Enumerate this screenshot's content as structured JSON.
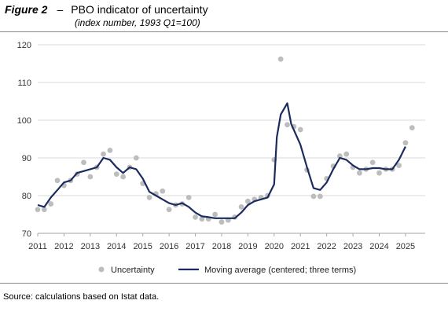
{
  "figure": {
    "label": "Figure 2",
    "dash": "–",
    "title": "PBO indicator of uncertainty",
    "subtitle": "(index number, 1993 Q1=100)"
  },
  "source": "Source: calculations based on Istat data.",
  "colors": {
    "scatter": "#bdbdbd",
    "line": "#1c2b5e",
    "grid": "#d9d9d9",
    "axis": "#a6a6a6"
  },
  "chart_data": {
    "type": "line",
    "title": "PBO indicator of uncertainty",
    "xlabel": "",
    "ylabel": "",
    "xlim": [
      2011.0,
      2025.75
    ],
    "ylim": [
      70,
      120
    ],
    "yticks": [
      70,
      80,
      90,
      100,
      110,
      120
    ],
    "xticks": [
      2011,
      2012,
      2013,
      2014,
      2015,
      2016,
      2017,
      2018,
      2019,
      2020,
      2021,
      2022,
      2023,
      2024,
      2025
    ],
    "grid": "horizontal",
    "legend_position": "bottom",
    "series": [
      {
        "name": "Uncertainty",
        "type": "scatter",
        "points": [
          [
            2011.0,
            76.3
          ],
          [
            2011.25,
            76.3
          ],
          [
            2011.5,
            77.8
          ],
          [
            2011.75,
            84.0
          ],
          [
            2012.0,
            82.7
          ],
          [
            2012.25,
            84.0
          ],
          [
            2012.5,
            85.7
          ],
          [
            2012.75,
            88.8
          ],
          [
            2013.0,
            85.0
          ],
          [
            2013.25,
            87.5
          ],
          [
            2013.5,
            91.0
          ],
          [
            2013.75,
            92.0
          ],
          [
            2014.0,
            85.7
          ],
          [
            2014.25,
            85.0
          ],
          [
            2014.5,
            87.5
          ],
          [
            2014.75,
            90.0
          ],
          [
            2015.0,
            83.2
          ],
          [
            2015.25,
            79.5
          ],
          [
            2015.5,
            80.5
          ],
          [
            2015.75,
            81.2
          ],
          [
            2016.0,
            76.3
          ],
          [
            2016.25,
            77.5
          ],
          [
            2016.5,
            77.8
          ],
          [
            2016.75,
            79.5
          ],
          [
            2017.0,
            74.3
          ],
          [
            2017.25,
            73.8
          ],
          [
            2017.5,
            73.8
          ],
          [
            2017.75,
            75.0
          ],
          [
            2018.0,
            73.0
          ],
          [
            2018.25,
            73.5
          ],
          [
            2018.5,
            74.3
          ],
          [
            2018.75,
            77.0
          ],
          [
            2019.0,
            78.5
          ],
          [
            2019.25,
            79.0
          ],
          [
            2019.5,
            79.5
          ],
          [
            2019.75,
            80.0
          ],
          [
            2020.0,
            89.5
          ],
          [
            2020.25,
            116.2
          ],
          [
            2020.5,
            98.8
          ],
          [
            2020.75,
            98.3
          ],
          [
            2021.0,
            97.5
          ],
          [
            2021.25,
            86.8
          ],
          [
            2021.5,
            79.8
          ],
          [
            2021.75,
            79.8
          ],
          [
            2022.0,
            84.5
          ],
          [
            2022.25,
            87.8
          ],
          [
            2022.5,
            90.5
          ],
          [
            2022.75,
            91.0
          ],
          [
            2023.0,
            87.5
          ],
          [
            2023.25,
            86.0
          ],
          [
            2023.5,
            87.0
          ],
          [
            2023.75,
            88.8
          ],
          [
            2024.0,
            86.0
          ],
          [
            2024.25,
            87.0
          ],
          [
            2024.5,
            87.0
          ],
          [
            2024.75,
            88.0
          ],
          [
            2025.0,
            94.0
          ],
          [
            2025.25,
            98.0
          ]
        ]
      },
      {
        "name": "Moving average (centered; three terms)",
        "type": "line",
        "points": [
          [
            2011.0,
            77.5
          ],
          [
            2011.25,
            77.0
          ],
          [
            2011.5,
            79.5
          ],
          [
            2011.75,
            81.5
          ],
          [
            2012.0,
            83.5
          ],
          [
            2012.25,
            84.0
          ],
          [
            2012.5,
            86.0
          ],
          [
            2012.75,
            86.5
          ],
          [
            2013.0,
            87.0
          ],
          [
            2013.25,
            87.5
          ],
          [
            2013.5,
            90.0
          ],
          [
            2013.75,
            89.5
          ],
          [
            2014.0,
            87.5
          ],
          [
            2014.25,
            86.0
          ],
          [
            2014.5,
            87.5
          ],
          [
            2014.75,
            87.0
          ],
          [
            2015.0,
            84.5
          ],
          [
            2015.25,
            81.0
          ],
          [
            2015.5,
            80.0
          ],
          [
            2015.75,
            79.0
          ],
          [
            2016.0,
            78.0
          ],
          [
            2016.25,
            77.5
          ],
          [
            2016.5,
            78.0
          ],
          [
            2016.75,
            77.0
          ],
          [
            2017.0,
            75.5
          ],
          [
            2017.25,
            74.5
          ],
          [
            2017.5,
            74.3
          ],
          [
            2017.75,
            74.0
          ],
          [
            2018.0,
            74.0
          ],
          [
            2018.25,
            74.0
          ],
          [
            2018.5,
            74.0
          ],
          [
            2018.75,
            75.5
          ],
          [
            2019.0,
            77.5
          ],
          [
            2019.25,
            78.5
          ],
          [
            2019.5,
            79.0
          ],
          [
            2019.75,
            79.5
          ],
          [
            2020.0,
            83.0
          ],
          [
            2020.1,
            95.5
          ],
          [
            2020.25,
            101.5
          ],
          [
            2020.5,
            104.5
          ],
          [
            2020.65,
            99.0
          ],
          [
            2021.0,
            93.5
          ],
          [
            2021.25,
            87.5
          ],
          [
            2021.5,
            82.0
          ],
          [
            2021.75,
            81.5
          ],
          [
            2022.0,
            83.5
          ],
          [
            2022.25,
            87.0
          ],
          [
            2022.5,
            90.0
          ],
          [
            2022.75,
            89.5
          ],
          [
            2023.0,
            88.0
          ],
          [
            2023.25,
            87.0
          ],
          [
            2023.5,
            87.0
          ],
          [
            2023.75,
            87.3
          ],
          [
            2024.0,
            87.3
          ],
          [
            2024.25,
            87.0
          ],
          [
            2024.5,
            87.0
          ],
          [
            2024.75,
            89.5
          ],
          [
            2025.0,
            93.0
          ]
        ]
      }
    ]
  }
}
